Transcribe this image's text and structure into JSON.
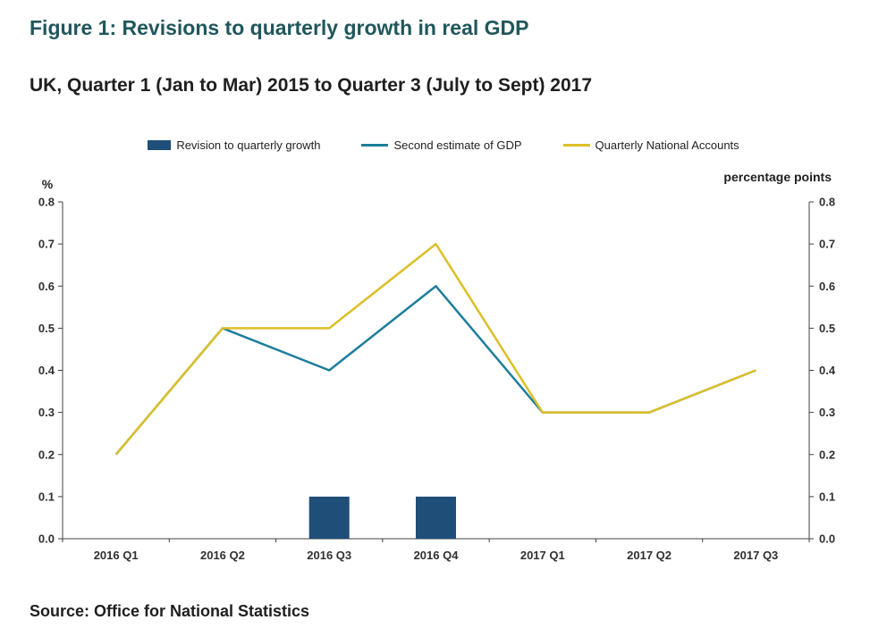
{
  "page": {
    "title": "Figure 1: Revisions to quarterly growth in real GDP",
    "subtitle": "UK, Quarter 1 (Jan to Mar) 2015 to Quarter 3 (July to Sept) 2017",
    "source": "Source: Office for National Statistics"
  },
  "colors": {
    "title": "#20575c",
    "text": "#1f1f1f",
    "axis": "#404040",
    "tick_text": "#303030"
  },
  "chart_data": {
    "type": "combo",
    "categories": [
      "2016 Q1",
      "2016 Q2",
      "2016 Q3",
      "2016 Q4",
      "2017 Q1",
      "2017 Q2",
      "2017 Q3"
    ],
    "left_axis_label": "%",
    "right_axis_label": "percentage points",
    "ylim": [
      0,
      0.8
    ],
    "ytick_step": 0.1,
    "grid": false,
    "legend_position": "top",
    "series": [
      {
        "name": "Revision to quarterly growth",
        "type": "bar",
        "values": [
          0,
          0,
          0.1,
          0.1,
          0,
          0,
          0
        ],
        "color": "#1f4e79"
      },
      {
        "name": "Second estimate of GDP",
        "type": "line",
        "values": [
          0.2,
          0.5,
          0.4,
          0.6,
          0.3,
          0.3,
          0.4
        ],
        "color": "#1d7d9c"
      },
      {
        "name": "Quarterly National Accounts",
        "type": "line",
        "values": [
          0.2,
          0.5,
          0.5,
          0.7,
          0.3,
          0.3,
          0.4
        ],
        "color": "#ddbf27"
      }
    ]
  }
}
